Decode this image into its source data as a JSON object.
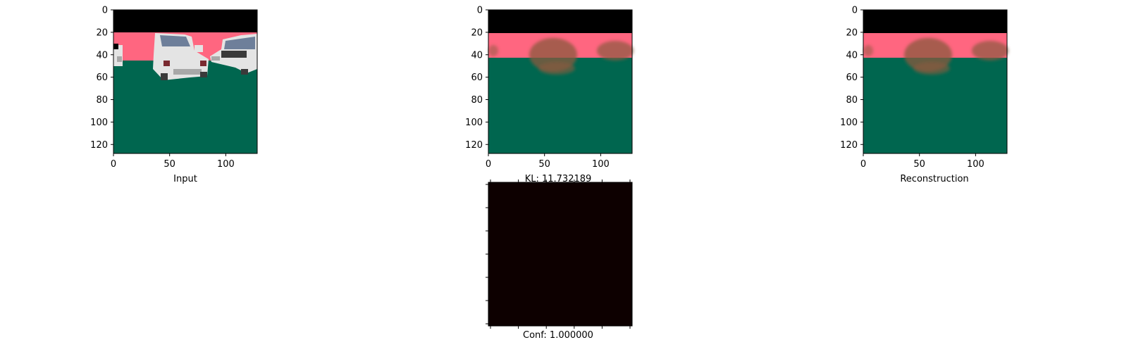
{
  "figure": {
    "background": "#ffffff"
  },
  "colors": {
    "sky": "#000000",
    "horizon": "#ff6680",
    "ground": "#00664f",
    "blur": "#8a5a3e",
    "car_body": "#e4e4e4",
    "car_shadow": "#a8a8a8",
    "car_window": "#6e7f9a",
    "car_light": "#7a2a30",
    "car_grille": "#3a3a3a",
    "conf_map": "#0d0000"
  },
  "chart_data": [
    {
      "type": "image",
      "name": "input-panel",
      "xlabel": "Input",
      "xticks": [
        "0",
        "50",
        "100"
      ],
      "yticks": [
        "0",
        "20",
        "40",
        "60",
        "80",
        "100",
        "120"
      ],
      "xlim": [
        0,
        128
      ],
      "ylim": [
        128,
        0
      ],
      "content": "rgb scene: black sky, pink horizon band, green ground, white cars"
    },
    {
      "type": "image",
      "name": "kl-panel",
      "xlabel": "KL: 11.732189",
      "xticks": [
        "0",
        "50",
        "100"
      ],
      "yticks": [
        "0",
        "20",
        "40",
        "60",
        "80",
        "100",
        "120"
      ],
      "xlim": [
        0,
        128
      ],
      "ylim": [
        128,
        0
      ],
      "content": "blurry rgb reconstruction"
    },
    {
      "type": "image",
      "name": "reconstruction-panel",
      "xlabel": "Reconstruction",
      "xticks": [
        "0",
        "50",
        "100"
      ],
      "yticks": [
        "0",
        "20",
        "40",
        "60",
        "80",
        "100",
        "120"
      ],
      "xlim": [
        0,
        128
      ],
      "ylim": [
        128,
        0
      ],
      "content": "blurry rgb reconstruction"
    },
    {
      "type": "heatmap",
      "name": "confidence-panel",
      "xlabel": "Conf: 1.000000",
      "xticks": [
        "",
        "",
        "",
        "",
        "",
        ""
      ],
      "yticks": [
        "",
        "",
        "",
        "",
        "",
        "",
        ""
      ],
      "content": "uniform dark map"
    }
  ]
}
